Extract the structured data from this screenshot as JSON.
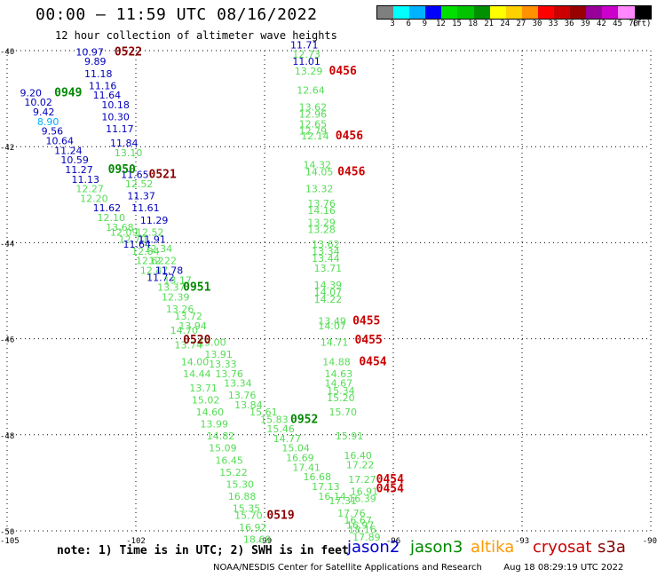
{
  "header": {
    "title": "00:00 – 11:59 UTC 08/16/2022",
    "subtitle": "12 hour collection of altimeter wave heights"
  },
  "colorbar": {
    "colors": [
      "#7f7f7f",
      "#00ffff",
      "#00b2ff",
      "#0000ff",
      "#00e000",
      "#00c400",
      "#009000",
      "#ffff00",
      "#ffd000",
      "#ff9000",
      "#ff0000",
      "#cc0000",
      "#990000",
      "#990099",
      "#cc00cc",
      "#ff88ff",
      "#000000"
    ],
    "tick_labels": [
      "3",
      "6",
      "9",
      "12",
      "15",
      "18",
      "21",
      "24",
      "27",
      "30",
      "33",
      "36",
      "39",
      "42",
      "45",
      "70",
      "(ft)"
    ]
  },
  "axes": {
    "lat_labels": [
      "-40",
      "-42",
      "-44",
      "-46",
      "-48",
      "-50"
    ],
    "lon_labels": [
      "-105",
      "-102",
      "-99",
      "-96",
      "-93",
      "-90"
    ]
  },
  "colors": {
    "jason2": "#0000cc",
    "jason3": "#008800",
    "altika": "#ff9900",
    "cryosat": "#cc0000",
    "s3a": "#880000",
    "wave_blue": "#0000bb",
    "wave_lightblue": "#00aaff",
    "wave_green": "#00aa00",
    "wave_lightgreen": "#55dd55"
  },
  "map_labels": [
    {
      "t": "10.97",
      "c": "wave_blue",
      "lon": -103.4,
      "lat": -40.1
    },
    {
      "t": "9.89",
      "c": "wave_blue",
      "lon": -103.2,
      "lat": -40.3
    },
    {
      "t": "11.18",
      "c": "wave_blue",
      "lon": -103.2,
      "lat": -40.55
    },
    {
      "t": "11.16",
      "c": "wave_blue",
      "lon": -103.1,
      "lat": -40.8
    },
    {
      "t": "9.20",
      "c": "wave_blue",
      "lon": -104.7,
      "lat": -40.95
    },
    {
      "t": "11.64",
      "c": "wave_blue",
      "lon": -103.0,
      "lat": -41.0
    },
    {
      "t": "10.02",
      "c": "wave_blue",
      "lon": -104.6,
      "lat": -41.15
    },
    {
      "t": "10.18",
      "c": "wave_blue",
      "lon": -102.8,
      "lat": -41.2
    },
    {
      "t": "9.42",
      "c": "wave_blue",
      "lon": -104.4,
      "lat": -41.35
    },
    {
      "t": "8.90",
      "c": "wave_lightblue",
      "lon": -104.3,
      "lat": -41.55
    },
    {
      "t": "10.30",
      "c": "wave_blue",
      "lon": -102.8,
      "lat": -41.45
    },
    {
      "t": "9.56",
      "c": "wave_blue",
      "lon": -104.2,
      "lat": -41.75
    },
    {
      "t": "11.17",
      "c": "wave_blue",
      "lon": -102.7,
      "lat": -41.7
    },
    {
      "t": "10.64",
      "c": "wave_blue",
      "lon": -104.1,
      "lat": -41.95
    },
    {
      "t": "11.84",
      "c": "wave_blue",
      "lon": -102.6,
      "lat": -42.0
    },
    {
      "t": "11.24",
      "c": "wave_blue",
      "lon": -103.9,
      "lat": -42.15
    },
    {
      "t": "13.10",
      "c": "wave_lightgreen",
      "lon": -102.5,
      "lat": -42.2
    },
    {
      "t": "10.59",
      "c": "wave_blue",
      "lon": -103.75,
      "lat": -42.35
    },
    {
      "t": "11.27",
      "c": "wave_blue",
      "lon": -103.65,
      "lat": -42.55
    },
    {
      "t": "11.65",
      "c": "wave_blue",
      "lon": -102.35,
      "lat": -42.65
    },
    {
      "t": "11.13",
      "c": "wave_blue",
      "lon": -103.5,
      "lat": -42.75
    },
    {
      "t": "12.52",
      "c": "wave_lightgreen",
      "lon": -102.25,
      "lat": -42.85
    },
    {
      "t": "12.27",
      "c": "wave_lightgreen",
      "lon": -103.4,
      "lat": -42.95
    },
    {
      "t": "11.37",
      "c": "wave_blue",
      "lon": -102.2,
      "lat": -43.1
    },
    {
      "t": "12.20",
      "c": "wave_lightgreen",
      "lon": -103.3,
      "lat": -43.15
    },
    {
      "t": "11.62",
      "c": "wave_blue",
      "lon": -103.0,
      "lat": -43.35
    },
    {
      "t": "11.61",
      "c": "wave_blue",
      "lon": -102.1,
      "lat": -43.35
    },
    {
      "t": "12.10",
      "c": "wave_lightgreen",
      "lon": -102.9,
      "lat": -43.55
    },
    {
      "t": "11.29",
      "c": "wave_blue",
      "lon": -101.9,
      "lat": -43.6
    },
    {
      "t": "13.68",
      "c": "wave_lightgreen",
      "lon": -102.7,
      "lat": -43.75
    },
    {
      "t": "12.52",
      "c": "wave_lightgreen",
      "lon": -102.0,
      "lat": -43.85
    },
    {
      "t": "12.09",
      "c": "wave_lightgreen",
      "lon": -102.6,
      "lat": -43.85
    },
    {
      "t": "12.70",
      "c": "wave_lightgreen",
      "lon": -102.4,
      "lat": -44.0
    },
    {
      "t": "11.91",
      "c": "wave_blue",
      "lon": -101.95,
      "lat": -44.0
    },
    {
      "t": "11.64",
      "c": "wave_blue",
      "lon": -102.3,
      "lat": -44.1
    },
    {
      "t": "12.34",
      "c": "wave_lightgreen",
      "lon": -101.8,
      "lat": -44.2
    },
    {
      "t": "12.84",
      "c": "wave_lightgreen",
      "lon": -102.1,
      "lat": -44.25
    },
    {
      "t": "12.22",
      "c": "wave_lightgreen",
      "lon": -101.7,
      "lat": -44.45
    },
    {
      "t": "12.62",
      "c": "wave_lightgreen",
      "lon": -102.0,
      "lat": -44.45
    },
    {
      "t": "12.47",
      "c": "wave_lightgreen",
      "lon": -101.9,
      "lat": -44.65
    },
    {
      "t": "11.78",
      "c": "wave_blue",
      "lon": -101.55,
      "lat": -44.65
    },
    {
      "t": "11.72",
      "c": "wave_blue",
      "lon": -101.75,
      "lat": -44.8
    },
    {
      "t": "13.17",
      "c": "wave_lightgreen",
      "lon": -101.35,
      "lat": -44.85
    },
    {
      "t": "13.37",
      "c": "wave_lightgreen",
      "lon": -101.5,
      "lat": -45.0
    },
    {
      "t": "12.39",
      "c": "wave_lightgreen",
      "lon": -101.4,
      "lat": -45.2
    },
    {
      "t": "13.26",
      "c": "wave_lightgreen",
      "lon": -101.3,
      "lat": -45.45
    },
    {
      "t": "13.72",
      "c": "wave_lightgreen",
      "lon": -101.1,
      "lat": -45.6
    },
    {
      "t": "13.94",
      "c": "wave_lightgreen",
      "lon": -101.0,
      "lat": -45.8
    },
    {
      "t": "14.70",
      "c": "wave_lightgreen",
      "lon": -101.2,
      "lat": -45.9
    },
    {
      "t": "13.74",
      "c": "wave_lightgreen",
      "lon": -101.1,
      "lat": -46.2
    },
    {
      "t": "13.00",
      "c": "wave_lightgreen",
      "lon": -100.55,
      "lat": -46.15
    },
    {
      "t": "13.91",
      "c": "wave_lightgreen",
      "lon": -100.4,
      "lat": -46.4
    },
    {
      "t": "14.00",
      "c": "wave_lightgreen",
      "lon": -100.95,
      "lat": -46.55
    },
    {
      "t": "13.33",
      "c": "wave_lightgreen",
      "lon": -100.3,
      "lat": -46.6
    },
    {
      "t": "14.44",
      "c": "wave_lightgreen",
      "lon": -100.9,
      "lat": -46.8
    },
    {
      "t": "13.76",
      "c": "wave_lightgreen",
      "lon": -100.15,
      "lat": -46.8
    },
    {
      "t": "13.71",
      "c": "wave_lightgreen",
      "lon": -100.75,
      "lat": -47.1
    },
    {
      "t": "13.34",
      "c": "wave_lightgreen",
      "lon": -99.95,
      "lat": -47.0
    },
    {
      "t": "13.76",
      "c": "wave_lightgreen",
      "lon": -99.85,
      "lat": -47.25
    },
    {
      "t": "15.02",
      "c": "wave_lightgreen",
      "lon": -100.7,
      "lat": -47.35
    },
    {
      "t": "13.84",
      "c": "wave_lightgreen",
      "lon": -99.7,
      "lat": -47.45
    },
    {
      "t": "14.60",
      "c": "wave_lightgreen",
      "lon": -100.6,
      "lat": -47.6
    },
    {
      "t": "15.61",
      "c": "wave_lightgreen",
      "lon": -99.35,
      "lat": -47.6
    },
    {
      "t": "15.83",
      "c": "wave_lightgreen",
      "lon": -99.1,
      "lat": -47.75
    },
    {
      "t": "13.99",
      "c": "wave_lightgreen",
      "lon": -100.5,
      "lat": -47.85
    },
    {
      "t": "15.46",
      "c": "wave_lightgreen",
      "lon": -98.95,
      "lat": -47.95
    },
    {
      "t": "14.82",
      "c": "wave_lightgreen",
      "lon": -100.35,
      "lat": -48.1
    },
    {
      "t": "14.77",
      "c": "wave_lightgreen",
      "lon": -98.8,
      "lat": -48.15
    },
    {
      "t": "15.09",
      "c": "wave_lightgreen",
      "lon": -100.3,
      "lat": -48.35
    },
    {
      "t": "15.04",
      "c": "wave_lightgreen",
      "lon": -98.6,
      "lat": -48.35
    },
    {
      "t": "16.45",
      "c": "wave_lightgreen",
      "lon": -100.15,
      "lat": -48.6
    },
    {
      "t": "16.69",
      "c": "wave_lightgreen",
      "lon": -98.5,
      "lat": -48.55
    },
    {
      "t": "17.41",
      "c": "wave_lightgreen",
      "lon": -98.35,
      "lat": -48.75
    },
    {
      "t": "15.22",
      "c": "wave_lightgreen",
      "lon": -100.05,
      "lat": -48.85
    },
    {
      "t": "16.68",
      "c": "wave_lightgreen",
      "lon": -98.1,
      "lat": -48.95
    },
    {
      "t": "15.30",
      "c": "wave_lightgreen",
      "lon": -99.9,
      "lat": -49.1
    },
    {
      "t": "17.13",
      "c": "wave_lightgreen",
      "lon": -97.9,
      "lat": -49.15
    },
    {
      "t": "16.88",
      "c": "wave_lightgreen",
      "lon": -99.85,
      "lat": -49.35
    },
    {
      "t": "16.14",
      "c": "wave_lightgreen",
      "lon": -97.75,
      "lat": -49.35
    },
    {
      "t": "15.35",
      "c": "wave_lightgreen",
      "lon": -99.75,
      "lat": -49.6
    },
    {
      "t": "15.70",
      "c": "wave_lightgreen",
      "lon": -99.7,
      "lat": -49.75
    },
    {
      "t": "16.92",
      "c": "wave_lightgreen",
      "lon": -99.6,
      "lat": -50.0
    },
    {
      "t": "18.69",
      "c": "wave_lightgreen",
      "lon": -99.5,
      "lat": -50.25
    },
    {
      "t": "11.71",
      "c": "wave_blue",
      "lon": -98.4,
      "lat": -39.95
    },
    {
      "t": "12.73",
      "c": "wave_lightgreen",
      "lon": -98.35,
      "lat": -40.15
    },
    {
      "t": "11.01",
      "c": "wave_blue",
      "lon": -98.35,
      "lat": -40.3
    },
    {
      "t": "13.29",
      "c": "wave_lightgreen",
      "lon": -98.3,
      "lat": -40.5
    },
    {
      "t": "12.64",
      "c": "wave_lightgreen",
      "lon": -98.25,
      "lat": -40.9
    },
    {
      "t": "13.62",
      "c": "wave_lightgreen",
      "lon": -98.2,
      "lat": -41.25
    },
    {
      "t": "12.96",
      "c": "wave_lightgreen",
      "lon": -98.2,
      "lat": -41.4
    },
    {
      "t": "12.65",
      "c": "wave_lightgreen",
      "lon": -98.2,
      "lat": -41.6
    },
    {
      "t": "12.79",
      "c": "wave_lightgreen",
      "lon": -98.2,
      "lat": -41.75
    },
    {
      "t": "12.14",
      "c": "wave_lightgreen",
      "lon": -98.15,
      "lat": -41.85
    },
    {
      "t": "14.32",
      "c": "wave_lightgreen",
      "lon": -98.1,
      "lat": -42.45
    },
    {
      "t": "14.05",
      "c": "wave_lightgreen",
      "lon": -98.05,
      "lat": -42.6
    },
    {
      "t": "13.32",
      "c": "wave_lightgreen",
      "lon": -98.05,
      "lat": -42.95
    },
    {
      "t": "13.76",
      "c": "wave_lightgreen",
      "lon": -98.0,
      "lat": -43.25
    },
    {
      "t": "14.16",
      "c": "wave_lightgreen",
      "lon": -98.0,
      "lat": -43.4
    },
    {
      "t": "13.29",
      "c": "wave_lightgreen",
      "lon": -98.0,
      "lat": -43.65
    },
    {
      "t": "13.28",
      "c": "wave_lightgreen",
      "lon": -98.0,
      "lat": -43.8
    },
    {
      "t": "13.62",
      "c": "wave_lightgreen",
      "lon": -97.9,
      "lat": -44.1
    },
    {
      "t": "13.34",
      "c": "wave_lightgreen",
      "lon": -97.9,
      "lat": -44.25
    },
    {
      "t": "13.44",
      "c": "wave_lightgreen",
      "lon": -97.9,
      "lat": -44.4
    },
    {
      "t": "13.71",
      "c": "wave_lightgreen",
      "lon": -97.85,
      "lat": -44.6
    },
    {
      "t": "14.39",
      "c": "wave_lightgreen",
      "lon": -97.85,
      "lat": -44.95
    },
    {
      "t": "14.07",
      "c": "wave_lightgreen",
      "lon": -97.85,
      "lat": -45.1
    },
    {
      "t": "14.22",
      "c": "wave_lightgreen",
      "lon": -97.85,
      "lat": -45.25
    },
    {
      "t": "13.49",
      "c": "wave_lightgreen",
      "lon": -97.75,
      "lat": -45.7
    },
    {
      "t": "14.07",
      "c": "wave_lightgreen",
      "lon": -97.75,
      "lat": -45.8
    },
    {
      "t": "14.71",
      "c": "wave_lightgreen",
      "lon": -97.7,
      "lat": -46.15
    },
    {
      "t": "14.88",
      "c": "wave_lightgreen",
      "lon": -97.65,
      "lat": -46.55
    },
    {
      "t": "14.63",
      "c": "wave_lightgreen",
      "lon": -97.6,
      "lat": -46.8
    },
    {
      "t": "14.67",
      "c": "wave_lightgreen",
      "lon": -97.6,
      "lat": -47.0
    },
    {
      "t": "15.34",
      "c": "wave_lightgreen",
      "lon": -97.55,
      "lat": -47.15
    },
    {
      "t": "15.20",
      "c": "wave_lightgreen",
      "lon": -97.55,
      "lat": -47.3
    },
    {
      "t": "15.70",
      "c": "wave_lightgreen",
      "lon": -97.5,
      "lat": -47.6
    },
    {
      "t": "15.91",
      "c": "wave_lightgreen",
      "lon": -97.35,
      "lat": -48.1
    },
    {
      "t": "16.40",
      "c": "wave_lightgreen",
      "lon": -97.15,
      "lat": -48.5
    },
    {
      "t": "17.22",
      "c": "wave_lightgreen",
      "lon": -97.1,
      "lat": -48.7
    },
    {
      "t": "17.27",
      "c": "wave_lightgreen",
      "lon": -97.05,
      "lat": -49.0
    },
    {
      "t": "16.91",
      "c": "wave_lightgreen",
      "lon": -97.0,
      "lat": -49.25
    },
    {
      "t": "16.39",
      "c": "wave_lightgreen",
      "lon": -97.05,
      "lat": -49.4
    },
    {
      "t": "17.31",
      "c": "wave_lightgreen",
      "lon": -97.5,
      "lat": -49.45
    },
    {
      "t": "17.76",
      "c": "wave_lightgreen",
      "lon": -97.3,
      "lat": -49.7
    },
    {
      "t": "16.67",
      "c": "wave_lightgreen",
      "lon": -97.15,
      "lat": -49.85
    },
    {
      "t": "16.97",
      "c": "wave_lightgreen",
      "lon": -97.1,
      "lat": -49.95
    },
    {
      "t": "18.16",
      "c": "wave_lightgreen",
      "lon": -97.05,
      "lat": -50.05
    },
    {
      "t": "17.89",
      "c": "wave_lightgreen",
      "lon": -96.95,
      "lat": -50.2
    }
  ],
  "pass_labels": [
    {
      "t": "0522",
      "c": "s3a",
      "lon": -102.5,
      "lat": -40.1
    },
    {
      "t": "0949",
      "c": "jason3",
      "lon": -103.9,
      "lat": -40.95
    },
    {
      "t": "0950",
      "c": "jason3",
      "lon": -102.65,
      "lat": -42.55
    },
    {
      "t": "0521",
      "c": "s3a",
      "lon": -101.7,
      "lat": -42.65
    },
    {
      "t": "0951",
      "c": "jason3",
      "lon": -100.9,
      "lat": -45.0
    },
    {
      "t": "0520",
      "c": "s3a",
      "lon": -100.9,
      "lat": -46.1
    },
    {
      "t": "0952",
      "c": "jason3",
      "lon": -98.4,
      "lat": -47.75
    },
    {
      "t": "0519",
      "c": "s3a",
      "lon": -98.95,
      "lat": -49.75
    },
    {
      "t": "0456",
      "c": "cryosat",
      "lon": -97.5,
      "lat": -40.5
    },
    {
      "t": "0456",
      "c": "cryosat",
      "lon": -97.35,
      "lat": -41.85
    },
    {
      "t": "0456",
      "c": "cryosat",
      "lon": -97.3,
      "lat": -42.6
    },
    {
      "t": "0455",
      "c": "cryosat",
      "lon": -96.95,
      "lat": -45.7
    },
    {
      "t": "0455",
      "c": "cryosat",
      "lon": -96.9,
      "lat": -46.1
    },
    {
      "t": "0454",
      "c": "cryosat",
      "lon": -96.8,
      "lat": -46.55
    },
    {
      "t": "0454",
      "c": "cryosat",
      "lon": -96.4,
      "lat": -49.0
    },
    {
      "t": "0454",
      "c": "cryosat",
      "lon": -96.4,
      "lat": -49.2
    }
  ],
  "footer": {
    "note": "note: 1) Time is in UTC; 2) SWH is in feet",
    "legend": {
      "jason2": "jason2",
      "jason3": "jason3",
      "altika": "altika",
      "cryosat": "cryosat",
      "s3a": "s3a"
    },
    "credit": "NOAA/NESDIS Center for Satellite Applications and Research",
    "timestamp": "Aug 18 08:29:19 UTC 2022"
  }
}
